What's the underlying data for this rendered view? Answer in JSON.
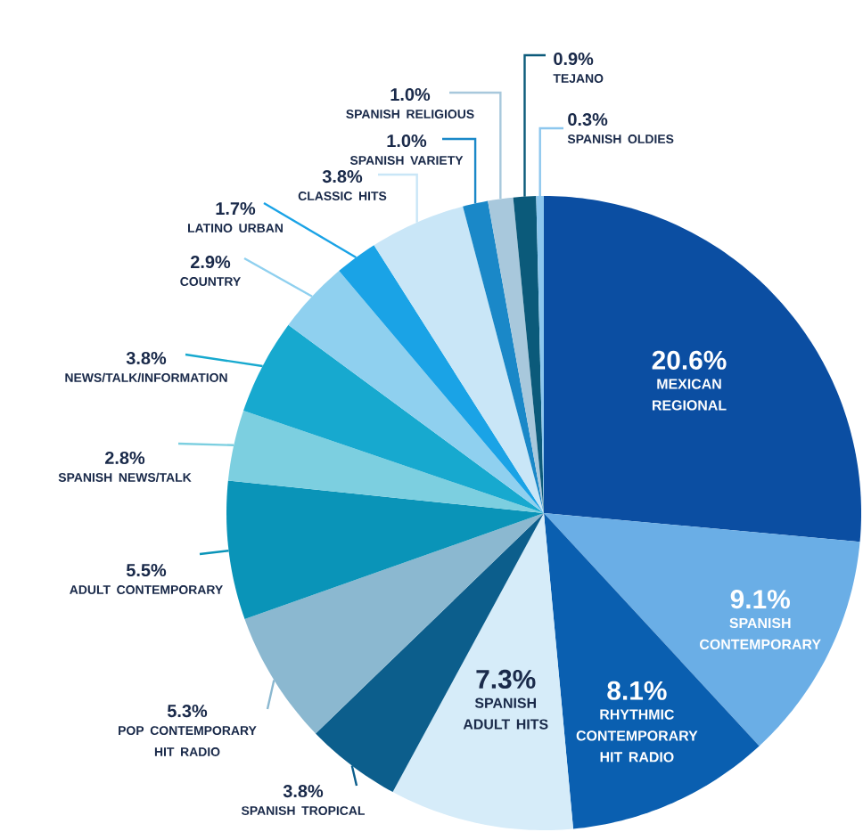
{
  "chart_data": {
    "type": "pie",
    "categories": [
      "MEXICAN REGIONAL",
      "SPANISH CONTEMPORARY",
      "RHYTHMIC CONTEMPORARY HIT RADIO",
      "SPANISH ADULT HITS",
      "SPANISH TROPICAL",
      "POP CONTEMPORARY HIT RADIO",
      "ADULT CONTEMPORARY",
      "SPANISH NEWS/TALK",
      "NEWS/TALK/INFORMATION",
      "COUNTRY",
      "LATINO URBAN",
      "CLASSIC HITS",
      "SPANISH VARIETY",
      "SPANISH RELIGIOUS",
      "TEJANO",
      "SPANISH OLDIES"
    ],
    "values": [
      20.6,
      9.1,
      8.1,
      7.3,
      3.8,
      5.3,
      5.5,
      2.8,
      3.8,
      2.9,
      1.7,
      3.8,
      1.0,
      1.0,
      0.9,
      0.3
    ],
    "value_labels": [
      "20.6%",
      "9.1%",
      "8.1%",
      "7.3%",
      "3.8%",
      "5.3%",
      "5.5%",
      "2.8%",
      "3.8%",
      "2.9%",
      "1.7%",
      "3.8%",
      "1.0%",
      "1.0%",
      "0.9%",
      "0.3%"
    ],
    "colors": [
      "#0b4ea2",
      "#6aaee6",
      "#0a5fb0",
      "#d6ecf9",
      "#0c5e8c",
      "#8bb8d0",
      "#0a94b8",
      "#7ccfe0",
      "#17a9cf",
      "#8fd0ef",
      "#1aa3e6",
      "#c9e6f7",
      "#1a88c8",
      "#a8c8dc",
      "#0b5a7a",
      "#8dc7ee"
    ],
    "legend": false
  }
}
